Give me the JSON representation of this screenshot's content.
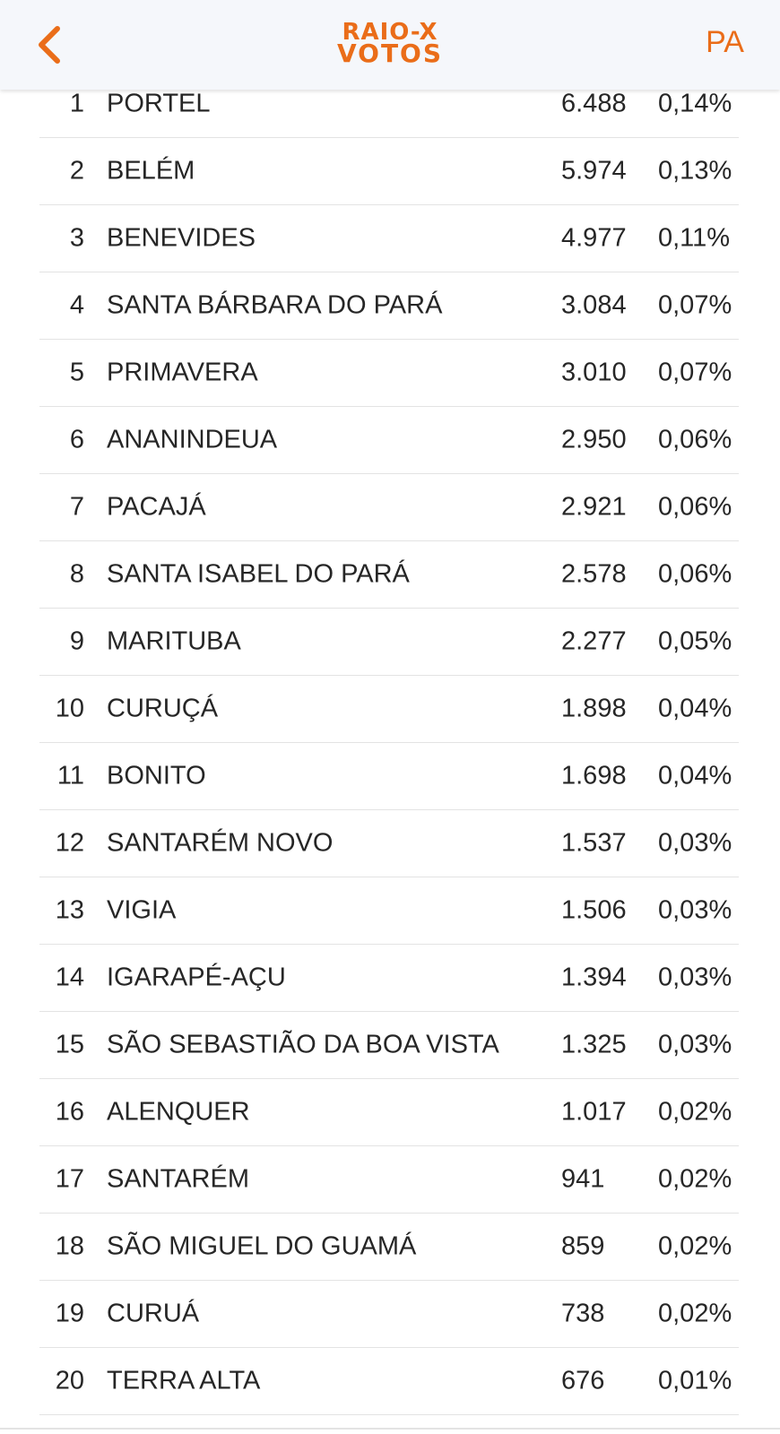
{
  "header": {
    "logo_line1": "RAIO-X",
    "logo_line2": "VOTOS",
    "state": "PA",
    "accent_color": "#ea6d19",
    "back_icon": "chevron-left-icon"
  },
  "rows": [
    {
      "rank": "1",
      "city": "PORTEL",
      "votes": "6.488",
      "pct": "0,14%"
    },
    {
      "rank": "2",
      "city": "BELÉM",
      "votes": "5.974",
      "pct": "0,13%"
    },
    {
      "rank": "3",
      "city": "BENEVIDES",
      "votes": "4.977",
      "pct": "0,11%"
    },
    {
      "rank": "4",
      "city": "SANTA BÁRBARA DO PARÁ",
      "votes": "3.084",
      "pct": "0,07%"
    },
    {
      "rank": "5",
      "city": "PRIMAVERA",
      "votes": "3.010",
      "pct": "0,07%"
    },
    {
      "rank": "6",
      "city": "ANANINDEUA",
      "votes": "2.950",
      "pct": "0,06%"
    },
    {
      "rank": "7",
      "city": "PACAJÁ",
      "votes": "2.921",
      "pct": "0,06%"
    },
    {
      "rank": "8",
      "city": "SANTA ISABEL DO PARÁ",
      "votes": "2.578",
      "pct": "0,06%"
    },
    {
      "rank": "9",
      "city": "MARITUBA",
      "votes": "2.277",
      "pct": "0,05%"
    },
    {
      "rank": "10",
      "city": "CURUÇÁ",
      "votes": "1.898",
      "pct": "0,04%"
    },
    {
      "rank": "11",
      "city": "BONITO",
      "votes": "1.698",
      "pct": "0,04%"
    },
    {
      "rank": "12",
      "city": "SANTARÉM NOVO",
      "votes": "1.537",
      "pct": "0,03%"
    },
    {
      "rank": "13",
      "city": "VIGIA",
      "votes": "1.506",
      "pct": "0,03%"
    },
    {
      "rank": "14",
      "city": "IGARAPÉ-AÇU",
      "votes": "1.394",
      "pct": "0,03%"
    },
    {
      "rank": "15",
      "city": "SÃO SEBASTIÃO DA BOA VISTA",
      "votes": "1.325",
      "pct": "0,03%"
    },
    {
      "rank": "16",
      "city": "ALENQUER",
      "votes": "1.017",
      "pct": "0,02%"
    },
    {
      "rank": "17",
      "city": "SANTARÉM",
      "votes": "941",
      "pct": "0,02%"
    },
    {
      "rank": "18",
      "city": "SÃO MIGUEL DO GUAMÁ",
      "votes": "859",
      "pct": "0,02%"
    },
    {
      "rank": "19",
      "city": "CURUÁ",
      "votes": "738",
      "pct": "0,02%"
    },
    {
      "rank": "20",
      "city": "TERRA ALTA",
      "votes": "676",
      "pct": "0,01%"
    }
  ]
}
